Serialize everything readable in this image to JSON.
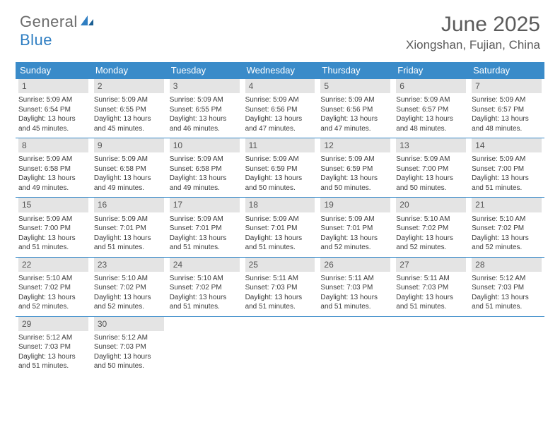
{
  "brand": {
    "word1": "General",
    "word2": "Blue",
    "color_general": "#6b6b6b",
    "color_blue": "#2f7ec2",
    "icon_color": "#2f7ec2"
  },
  "title": "June 2025",
  "location": "Xiongshan, Fujian, China",
  "colors": {
    "header_bg": "#3a8bc9",
    "header_text": "#ffffff",
    "daynum_bg": "#e4e4e4",
    "daynum_text": "#555555",
    "row_border": "#3a8bc9",
    "body_text": "#3c3c3c"
  },
  "weekdays": [
    "Sunday",
    "Monday",
    "Tuesday",
    "Wednesday",
    "Thursday",
    "Friday",
    "Saturday"
  ],
  "days": [
    {
      "n": 1,
      "sunrise": "5:09 AM",
      "sunset": "6:54 PM",
      "daylight": "13 hours and 45 minutes."
    },
    {
      "n": 2,
      "sunrise": "5:09 AM",
      "sunset": "6:55 PM",
      "daylight": "13 hours and 45 minutes."
    },
    {
      "n": 3,
      "sunrise": "5:09 AM",
      "sunset": "6:55 PM",
      "daylight": "13 hours and 46 minutes."
    },
    {
      "n": 4,
      "sunrise": "5:09 AM",
      "sunset": "6:56 PM",
      "daylight": "13 hours and 47 minutes."
    },
    {
      "n": 5,
      "sunrise": "5:09 AM",
      "sunset": "6:56 PM",
      "daylight": "13 hours and 47 minutes."
    },
    {
      "n": 6,
      "sunrise": "5:09 AM",
      "sunset": "6:57 PM",
      "daylight": "13 hours and 48 minutes."
    },
    {
      "n": 7,
      "sunrise": "5:09 AM",
      "sunset": "6:57 PM",
      "daylight": "13 hours and 48 minutes."
    },
    {
      "n": 8,
      "sunrise": "5:09 AM",
      "sunset": "6:58 PM",
      "daylight": "13 hours and 49 minutes."
    },
    {
      "n": 9,
      "sunrise": "5:09 AM",
      "sunset": "6:58 PM",
      "daylight": "13 hours and 49 minutes."
    },
    {
      "n": 10,
      "sunrise": "5:09 AM",
      "sunset": "6:58 PM",
      "daylight": "13 hours and 49 minutes."
    },
    {
      "n": 11,
      "sunrise": "5:09 AM",
      "sunset": "6:59 PM",
      "daylight": "13 hours and 50 minutes."
    },
    {
      "n": 12,
      "sunrise": "5:09 AM",
      "sunset": "6:59 PM",
      "daylight": "13 hours and 50 minutes."
    },
    {
      "n": 13,
      "sunrise": "5:09 AM",
      "sunset": "7:00 PM",
      "daylight": "13 hours and 50 minutes."
    },
    {
      "n": 14,
      "sunrise": "5:09 AM",
      "sunset": "7:00 PM",
      "daylight": "13 hours and 51 minutes."
    },
    {
      "n": 15,
      "sunrise": "5:09 AM",
      "sunset": "7:00 PM",
      "daylight": "13 hours and 51 minutes."
    },
    {
      "n": 16,
      "sunrise": "5:09 AM",
      "sunset": "7:01 PM",
      "daylight": "13 hours and 51 minutes."
    },
    {
      "n": 17,
      "sunrise": "5:09 AM",
      "sunset": "7:01 PM",
      "daylight": "13 hours and 51 minutes."
    },
    {
      "n": 18,
      "sunrise": "5:09 AM",
      "sunset": "7:01 PM",
      "daylight": "13 hours and 51 minutes."
    },
    {
      "n": 19,
      "sunrise": "5:09 AM",
      "sunset": "7:01 PM",
      "daylight": "13 hours and 52 minutes."
    },
    {
      "n": 20,
      "sunrise": "5:10 AM",
      "sunset": "7:02 PM",
      "daylight": "13 hours and 52 minutes."
    },
    {
      "n": 21,
      "sunrise": "5:10 AM",
      "sunset": "7:02 PM",
      "daylight": "13 hours and 52 minutes."
    },
    {
      "n": 22,
      "sunrise": "5:10 AM",
      "sunset": "7:02 PM",
      "daylight": "13 hours and 52 minutes."
    },
    {
      "n": 23,
      "sunrise": "5:10 AM",
      "sunset": "7:02 PM",
      "daylight": "13 hours and 52 minutes."
    },
    {
      "n": 24,
      "sunrise": "5:10 AM",
      "sunset": "7:02 PM",
      "daylight": "13 hours and 51 minutes."
    },
    {
      "n": 25,
      "sunrise": "5:11 AM",
      "sunset": "7:03 PM",
      "daylight": "13 hours and 51 minutes."
    },
    {
      "n": 26,
      "sunrise": "5:11 AM",
      "sunset": "7:03 PM",
      "daylight": "13 hours and 51 minutes."
    },
    {
      "n": 27,
      "sunrise": "5:11 AM",
      "sunset": "7:03 PM",
      "daylight": "13 hours and 51 minutes."
    },
    {
      "n": 28,
      "sunrise": "5:12 AM",
      "sunset": "7:03 PM",
      "daylight": "13 hours and 51 minutes."
    },
    {
      "n": 29,
      "sunrise": "5:12 AM",
      "sunset": "7:03 PM",
      "daylight": "13 hours and 51 minutes."
    },
    {
      "n": 30,
      "sunrise": "5:12 AM",
      "sunset": "7:03 PM",
      "daylight": "13 hours and 50 minutes."
    }
  ],
  "labels": {
    "sunrise": "Sunrise:",
    "sunset": "Sunset:",
    "daylight": "Daylight:"
  },
  "layout": {
    "columns": 7,
    "weeks": 5,
    "first_weekday_index": 0,
    "cell_font_size": 10,
    "header_font_size": 13,
    "title_font_size": 30,
    "location_font_size": 17
  }
}
